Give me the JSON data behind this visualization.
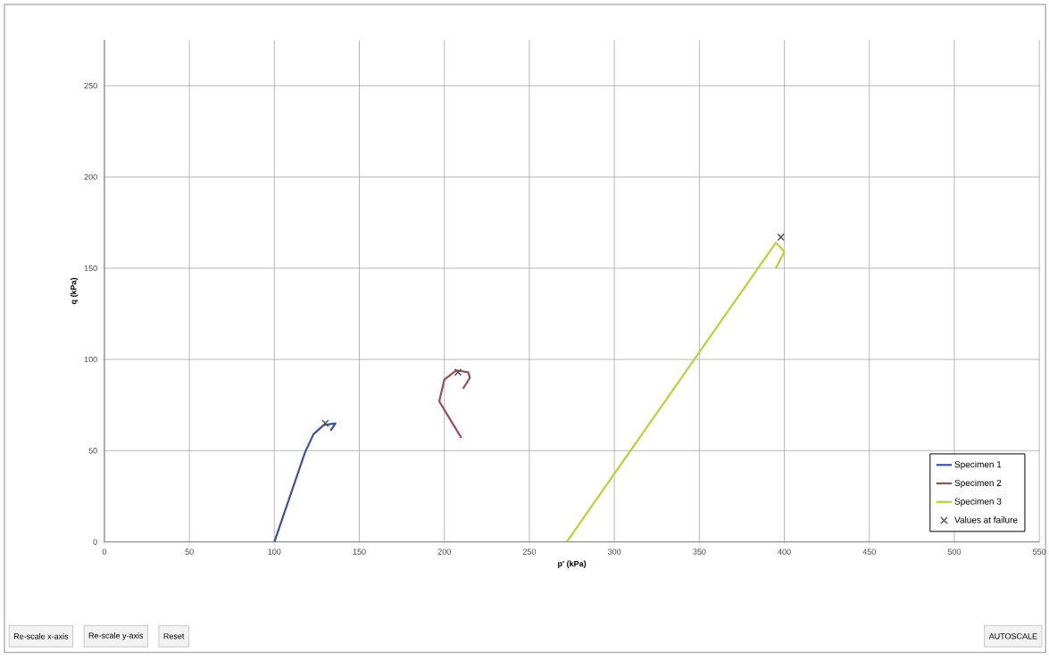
{
  "chart_data": {
    "type": "line",
    "xlabel": "p' (kPa)",
    "ylabel": "q (kPa)",
    "xlim": [
      0,
      550
    ],
    "ylim": [
      0,
      275
    ],
    "xticks": [
      0,
      50,
      100,
      150,
      200,
      250,
      300,
      350,
      400,
      450,
      500,
      550
    ],
    "yticks": [
      0,
      50,
      100,
      150,
      200,
      250
    ],
    "grid": true,
    "legend": "bottom right",
    "series": [
      {
        "name": "Specimen 1",
        "color": "#3f4f9f",
        "marker": "none",
        "x": [
          100,
          118,
          123,
          129,
          136,
          133
        ],
        "values": [
          0,
          49,
          59,
          64,
          65,
          61
        ]
      },
      {
        "name": "Specimen 2",
        "color": "#9a4a55",
        "marker": "none",
        "x": [
          210,
          197,
          200,
          207,
          214,
          215,
          211
        ],
        "values": [
          57,
          77,
          89,
          94,
          93,
          90,
          84
        ]
      },
      {
        "name": "Specimen 3",
        "color": "#b5d334",
        "marker": "none",
        "x": [
          272,
          395,
          400,
          395
        ],
        "values": [
          0,
          164,
          159,
          150
        ]
      },
      {
        "name": "Values at failure",
        "type": "scatter",
        "color": "#555555",
        "marker": "cross",
        "x": [
          130,
          208,
          398
        ],
        "values": [
          65,
          93,
          167
        ]
      }
    ],
    "annotations": [
      "Re-scale x-axis",
      "Re-scale y-axis",
      "Reset",
      "AUTOSCALE"
    ]
  }
}
